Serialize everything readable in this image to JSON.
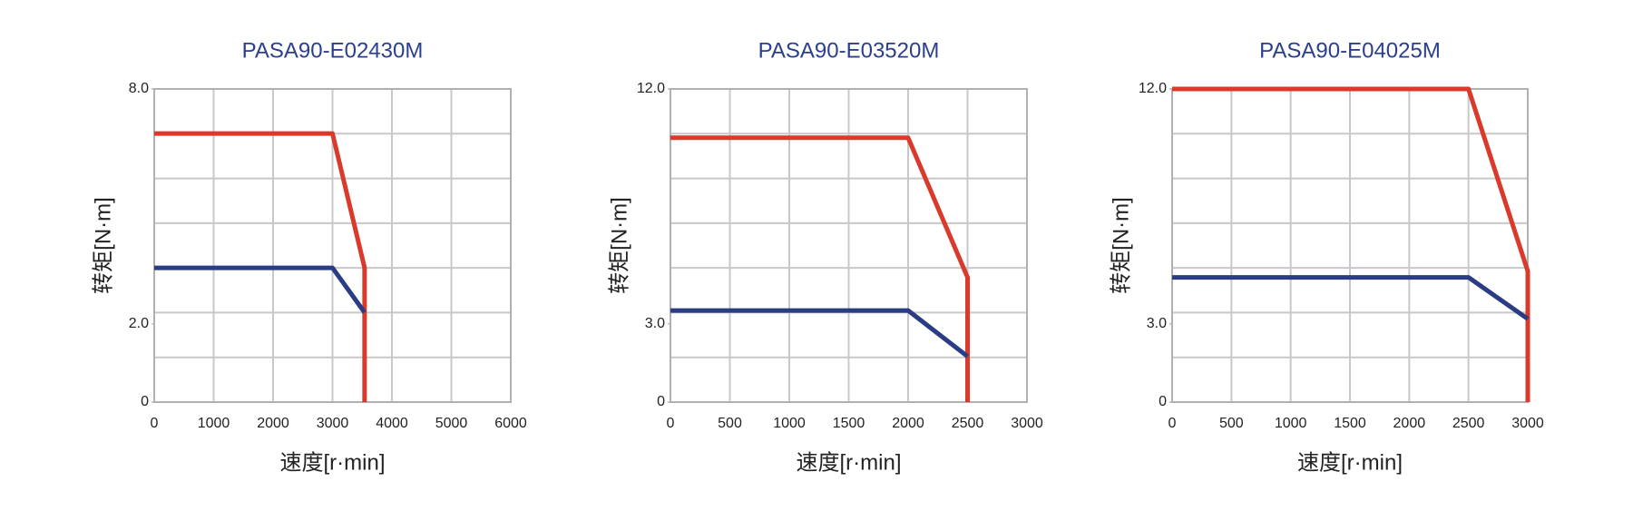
{
  "chart_data": [
    {
      "type": "line",
      "title": "PASA90-E02430M",
      "x_label": "速度[r·min]",
      "y_label": "转矩[N·m]",
      "xlim": [
        0,
        6000
      ],
      "xticks": [
        0,
        1000,
        2000,
        3000,
        4000,
        5000,
        6000
      ],
      "ylim": [
        0,
        8
      ],
      "yticks": [
        0,
        {
          "value": 2,
          "label": "2.0"
        },
        {
          "value": 8,
          "label": "8.0"
        }
      ],
      "grid": true,
      "series": [
        {
          "color": "#d93a2b",
          "x": [
            0,
            3000,
            3540,
            3540
          ],
          "values": [
            6.86,
            6.86,
            3.43,
            0
          ]
        },
        {
          "color": "#2a3d84",
          "x": [
            0,
            3000,
            3540
          ],
          "values": [
            3.43,
            3.43,
            2.29
          ]
        }
      ]
    },
    {
      "type": "line",
      "title": "PASA90-E03520M",
      "x_label": "速度[r·min]",
      "y_label": "转矩[N·m]",
      "xlim": [
        0,
        3000
      ],
      "xticks": [
        0,
        500,
        1000,
        1500,
        2000,
        2500,
        3000
      ],
      "ylim": [
        0,
        12
      ],
      "yticks": [
        0,
        {
          "value": 3,
          "label": "3.0"
        },
        {
          "value": 12,
          "label": "12.0"
        }
      ],
      "grid": true,
      "series": [
        {
          "color": "#d93a2b",
          "x": [
            0,
            2000,
            2500,
            2500
          ],
          "values": [
            10.13,
            10.13,
            4.78,
            0
          ]
        },
        {
          "color": "#2a3d84",
          "x": [
            0,
            2000,
            2500
          ],
          "values": [
            3.51,
            3.51,
            1.75
          ]
        }
      ]
    },
    {
      "type": "line",
      "title": "PASA90-E04025M",
      "x_label": "速度[r·min]",
      "y_label": "转矩[N·m]",
      "xlim": [
        0,
        3000
      ],
      "xticks": [
        0,
        500,
        1000,
        1500,
        2000,
        2500,
        3000
      ],
      "ylim": [
        0,
        12
      ],
      "yticks": [
        0,
        {
          "value": 3,
          "label": "3.0"
        },
        {
          "value": 12,
          "label": "12.0"
        }
      ],
      "grid": true,
      "series": [
        {
          "color": "#d93a2b",
          "x": [
            0,
            2500,
            3000,
            3000
          ],
          "values": [
            12,
            12,
            5.02,
            0
          ]
        },
        {
          "color": "#2a3d84",
          "x": [
            0,
            2500,
            3000
          ],
          "values": [
            4.78,
            4.78,
            3.19
          ]
        }
      ]
    }
  ]
}
